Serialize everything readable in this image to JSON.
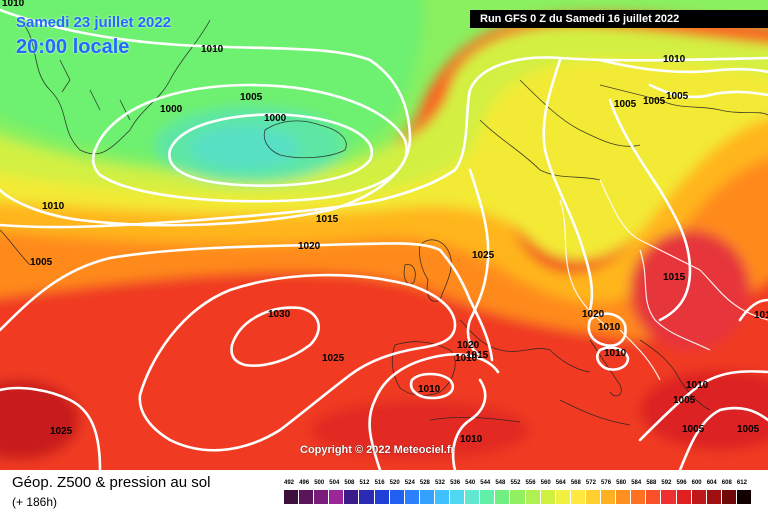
{
  "header": {
    "date": "Samedi 23 juillet 2022",
    "time": "20:00 locale",
    "run": "Run GFS 0 Z du Samedi 16 juillet 2022"
  },
  "copyright": "Copyright © 2022 Meteociel.fr",
  "footer": {
    "title": "Géop. Z500 & pression au sol",
    "subtitle": "(+ 186h)"
  },
  "legend": {
    "labels": [
      "492",
      "496",
      "500",
      "504",
      "508",
      "512",
      "516",
      "520",
      "524",
      "528",
      "532",
      "536",
      "540",
      "544",
      "548",
      "552",
      "556",
      "560",
      "564",
      "568",
      "572",
      "576",
      "580",
      "584",
      "588",
      "592",
      "596",
      "600",
      "604",
      "608",
      "612"
    ],
    "colors": [
      "#3d0f3d",
      "#5a145a",
      "#7a1c7a",
      "#9a269a",
      "#3b1a8a",
      "#2a2ab5",
      "#1f3fd6",
      "#2060f0",
      "#2a80ff",
      "#34a0ff",
      "#40c0ff",
      "#50d8f0",
      "#60e8d0",
      "#60f0a8",
      "#70f080",
      "#90f060",
      "#b0f050",
      "#d0f040",
      "#f0f040",
      "#ffe840",
      "#ffd030",
      "#ffb020",
      "#ff9020",
      "#ff7020",
      "#f85028",
      "#f03030",
      "#e02020",
      "#c01818",
      "#a01010",
      "#700808",
      "#100000"
    ],
    "color_name": "geopotential 500 hPa scale (dam)"
  },
  "isobars": [
    {
      "value": "1010",
      "id": "a"
    },
    {
      "value": "1010",
      "id": "b"
    },
    {
      "value": "1005",
      "id": "c"
    },
    {
      "value": "1000",
      "id": "d"
    },
    {
      "value": "1000",
      "id": "e"
    },
    {
      "value": "1010",
      "id": "f"
    },
    {
      "value": "1005",
      "id": "g"
    },
    {
      "value": "1015",
      "id": "h"
    },
    {
      "value": "1020",
      "id": "i"
    },
    {
      "value": "1030",
      "id": "j"
    },
    {
      "value": "1025",
      "id": "k"
    },
    {
      "value": "1025",
      "id": "l"
    },
    {
      "value": "1025",
      "id": "m"
    },
    {
      "value": "1010",
      "id": "n"
    },
    {
      "value": "1005",
      "id": "o"
    },
    {
      "value": "1005",
      "id": "p"
    },
    {
      "value": "1005",
      "id": "q"
    },
    {
      "value": "1015",
      "id": "r"
    },
    {
      "value": "1020",
      "id": "s"
    },
    {
      "value": "1010",
      "id": "t"
    },
    {
      "value": "1010",
      "id": "u"
    },
    {
      "value": "1020",
      "id": "v"
    },
    {
      "value": "1015",
      "id": "w"
    },
    {
      "value": "1010",
      "id": "x"
    },
    {
      "value": "1010",
      "id": "y"
    },
    {
      "value": "1010",
      "id": "z"
    },
    {
      "value": "1010",
      "id": "aa"
    },
    {
      "value": "1005",
      "id": "ab"
    },
    {
      "value": "1005",
      "id": "ac"
    },
    {
      "value": "1005",
      "id": "ad"
    },
    {
      "value": "1010",
      "id": "ae"
    },
    {
      "value": "1010",
      "id": "af"
    }
  ]
}
